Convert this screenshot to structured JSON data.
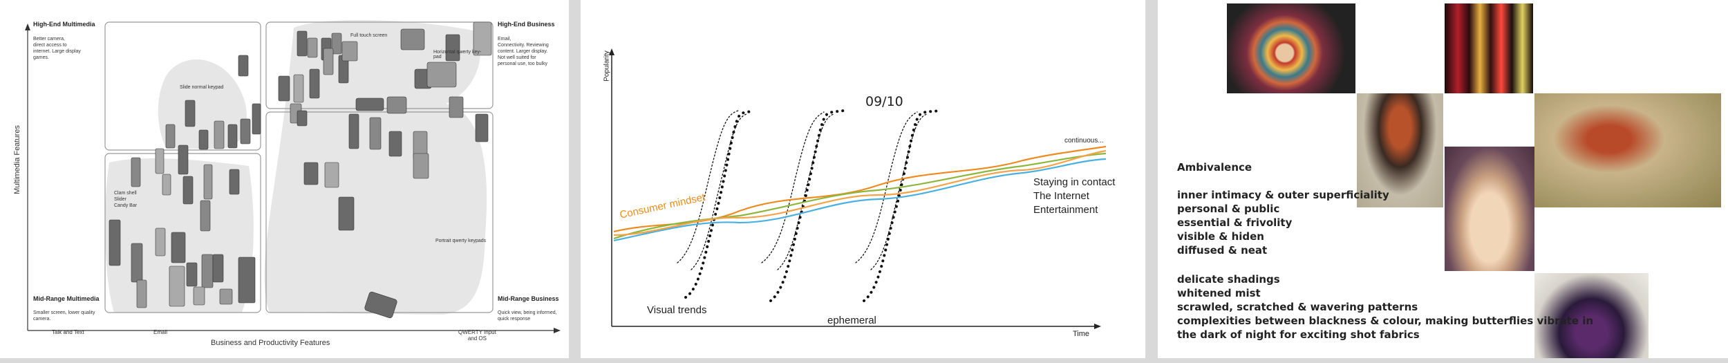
{
  "panel1": {
    "quadrants": {
      "top_left": {
        "title": "High-End Multimedia",
        "desc": [
          "Better camera,",
          "direct access to",
          "internet. Large display",
          "games."
        ]
      },
      "top_right": {
        "title": "High-End Business",
        "desc": [
          "Email,",
          "Connectivity. Reviewing",
          "content. Larger display.",
          "Not well suited for",
          "personal use, too bulky"
        ]
      },
      "bottom_left": {
        "title": "Mid-Range Multimedia",
        "desc": [
          "Smaller screen, lower quality",
          "camera."
        ]
      },
      "bottom_right": {
        "title": "Mid-Range Business",
        "desc": [
          "Quick view, being informed,",
          "quick response"
        ]
      }
    },
    "segments": {
      "slide": "Slide normal keypad",
      "full_touch": "Full touch screen",
      "horizontal_qwerty": [
        "Horizontal qwerty key-",
        "pad"
      ],
      "clam": [
        "Clam shell",
        "Slider",
        "Candy Bar"
      ],
      "portrait_qwerty": "Portrait qwerty keypads"
    },
    "y_axis_label": "Multimedia Features",
    "x_axis_label": "Business and Productivity Features",
    "x_ticks": [
      "Talk and Text",
      "Email",
      "QWERTY Input",
      "and OS"
    ],
    "colors": {
      "blob": "#e6e6e6",
      "box": "#999999",
      "phone_dark": "#555555",
      "phone_light": "#bbbbbb"
    }
  },
  "panel2": {
    "year_label": "09/10",
    "continuous_label": "continuous...",
    "consumer_label": "Consumer mindset",
    "staying_lines": [
      "Staying in contact",
      "The Internet",
      "Entertainment"
    ],
    "visual_trends": "Visual trends",
    "ephemeral": "ephemeral",
    "y_axis_label": "Popularity",
    "x_axis_label": "Time",
    "colors": {
      "orange": "#ee8a1e",
      "green": "#8cb63c",
      "blue": "#4ab0e0",
      "consumer_text": "#f08a1a"
    }
  },
  "panel3": {
    "heading": "Ambivalence",
    "group1": [
      "inner intimacy & outer superficiality",
      "personal & public",
      "essential & frivolity",
      "visible & hiden",
      "diffused & neat"
    ],
    "group2": [
      "delicate shadings",
      "whitened mist",
      "scrawled, scratched & wavering patterns",
      "complexities between blackness & colour, making butterflies vibrate in",
      "the dark of night for exciting shot fabrics"
    ],
    "photos": [
      "colorful-swirl-dress-photo",
      "neon-city-night-photo",
      "red-hair-model-photo",
      "red-hair-misty-photo",
      "feather-dress-photo",
      "runway-gowns-photo"
    ]
  }
}
